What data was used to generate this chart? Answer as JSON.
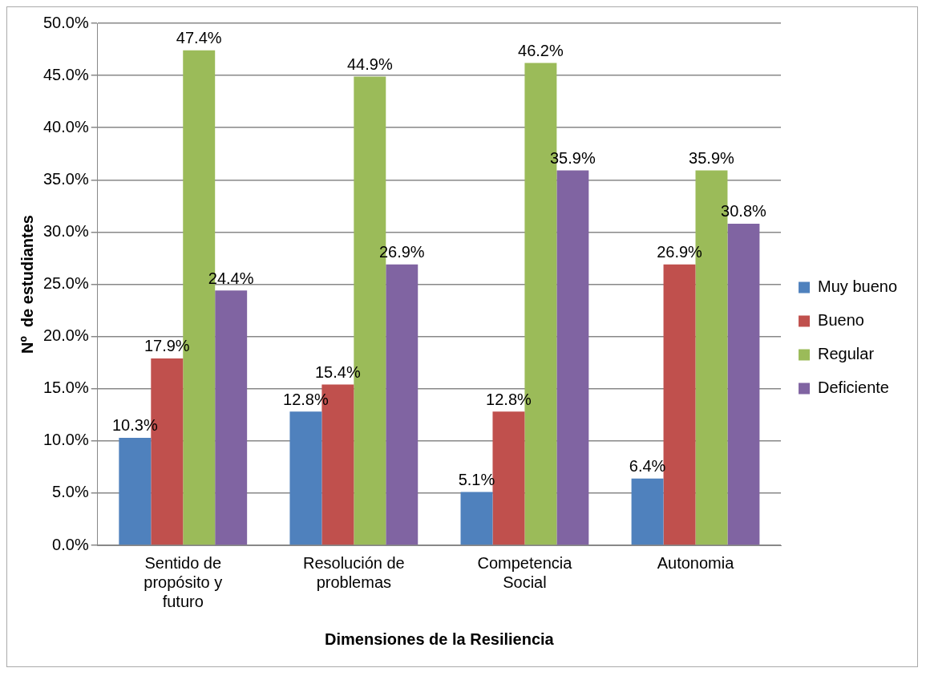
{
  "chart_data": {
    "type": "bar",
    "xlabel": "Dimensiones de la Resiliencia",
    "ylabel": "Nº  de estudiantes",
    "categories": [
      "Sentido de propósito y futuro",
      "Resolución de problemas",
      "Competencia Social",
      "Autonomia"
    ],
    "series": [
      {
        "name": "Muy bueno",
        "color": "#4f81bd",
        "values": [
          10.3,
          12.8,
          5.1,
          6.4
        ],
        "value_labels": [
          "10.3%",
          "12.8%",
          "5.1%",
          "6.4%"
        ]
      },
      {
        "name": "Bueno",
        "color": "#c0504d",
        "values": [
          17.9,
          15.4,
          12.8,
          26.9
        ],
        "value_labels": [
          "17.9%",
          "15.4%",
          "12.8%",
          "26.9%"
        ]
      },
      {
        "name": "Regular",
        "color": "#9bbb59",
        "values": [
          47.4,
          44.9,
          46.2,
          35.9
        ],
        "value_labels": [
          "47.4%",
          "44.9%",
          "46.2%",
          "35.9%"
        ]
      },
      {
        "name": "Deficiente",
        "color": "#8064a2",
        "values": [
          24.4,
          26.9,
          35.9,
          30.8
        ],
        "value_labels": [
          "24.4%",
          "26.9%",
          "35.9%",
          "30.8%"
        ]
      }
    ],
    "ylim": [
      0,
      50
    ],
    "yticks": [
      {
        "value": 0,
        "label": "0.0%"
      },
      {
        "value": 5,
        "label": "5.0%"
      },
      {
        "value": 10,
        "label": "10.0%"
      },
      {
        "value": 15,
        "label": "15.0%"
      },
      {
        "value": 20,
        "label": "20.0%"
      },
      {
        "value": 25,
        "label": "25.0%"
      },
      {
        "value": 30,
        "label": "30.0%"
      },
      {
        "value": 35,
        "label": "35.0%"
      },
      {
        "value": 40,
        "label": "40.0%"
      },
      {
        "value": 45,
        "label": "45.0%"
      },
      {
        "value": 50,
        "label": "50.0%"
      }
    ],
    "grid": "y",
    "legend": "right"
  }
}
